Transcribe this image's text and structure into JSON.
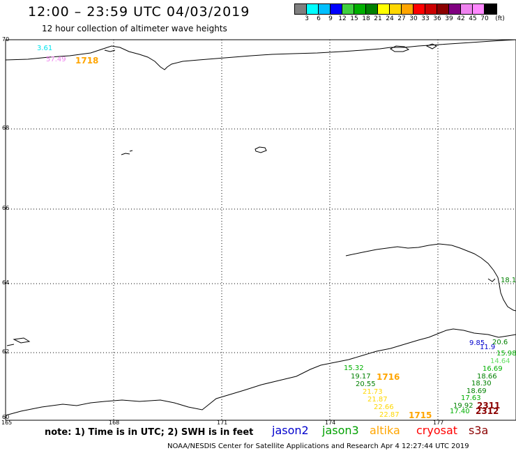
{
  "header": {
    "title": "12:00 – 23:59 UTC 04/03/2019",
    "subtitle": "12 hour collection of altimeter wave heights"
  },
  "colorbar": {
    "colors": [
      "#808080",
      "#00ffff",
      "#00bfff",
      "#0000ff",
      "#3fd03f",
      "#00b000",
      "#008000",
      "#ffff00",
      "#ffd700",
      "#ffa500",
      "#ff0000",
      "#cc0000",
      "#8b0000",
      "#800080",
      "#ee82ee",
      "#ff88ff",
      "#000000"
    ],
    "labels": [
      "3",
      "6",
      "9",
      "12",
      "15",
      "18",
      "21",
      "24",
      "27",
      "30",
      "33",
      "36",
      "39",
      "42",
      "45",
      "70",
      "(ft)"
    ]
  },
  "map": {
    "lat_labels": [
      "70",
      "68",
      "66",
      "64",
      "62",
      "60"
    ],
    "lon_labels": [
      "165",
      "168",
      "171",
      "174",
      "177"
    ]
  },
  "observations": [
    {
      "text": "3.61",
      "color": "#00e5ee"
    },
    {
      "text": "57.49",
      "color": "#ee82ee"
    },
    {
      "text": "1718",
      "color": "#ffa500",
      "big": true
    },
    {
      "text": "18.1",
      "color": "#008000"
    },
    {
      "text": "9.85",
      "color": "#0000cd"
    },
    {
      "text": "11.9",
      "color": "#0000cd"
    },
    {
      "text": "20.6",
      "color": "#008000"
    },
    {
      "text": "15.98",
      "color": "#00b000"
    },
    {
      "text": "14.64",
      "color": "#66e066"
    },
    {
      "text": "16.69",
      "color": "#00b000"
    },
    {
      "text": "18.66",
      "color": "#008000"
    },
    {
      "text": "18.30",
      "color": "#008000"
    },
    {
      "text": "18.69",
      "color": "#008000"
    },
    {
      "text": "17.63",
      "color": "#00b000"
    },
    {
      "text": "19.92",
      "color": "#008000"
    },
    {
      "text": "17.40",
      "color": "#00b000"
    },
    {
      "text": "2311",
      "color": "#8b0000",
      "big": true
    },
    {
      "text": "2312",
      "color": "#8b0000",
      "big": true
    },
    {
      "text": "15.32",
      "color": "#00b000"
    },
    {
      "text": "19.17",
      "color": "#008000"
    },
    {
      "text": "1716",
      "color": "#ffa500",
      "big": true
    },
    {
      "text": "20.55",
      "color": "#008000"
    },
    {
      "text": "21.73",
      "color": "#ffd700"
    },
    {
      "text": "21.87",
      "color": "#ffd700"
    },
    {
      "text": "22.66",
      "color": "#ffd700"
    },
    {
      "text": "22.87",
      "color": "#ffd700"
    },
    {
      "text": "1715",
      "color": "#ffa500",
      "big": true
    }
  ],
  "legend": {
    "note": "note: 1) Time is in UTC; 2) SWH is in feet",
    "satellites": [
      {
        "name": "jason2",
        "color": "#0000cd"
      },
      {
        "name": "jason3",
        "color": "#00a000"
      },
      {
        "name": "altika",
        "color": "#ffa500"
      },
      {
        "name": "cryosat",
        "color": "#ff0000"
      },
      {
        "name": "s3a",
        "color": "#8b0000"
      }
    ]
  },
  "footer": "NOAA/NESDIS Center for Satellite Applications and Research   Apr  4 12:27:44 UTC 2019"
}
